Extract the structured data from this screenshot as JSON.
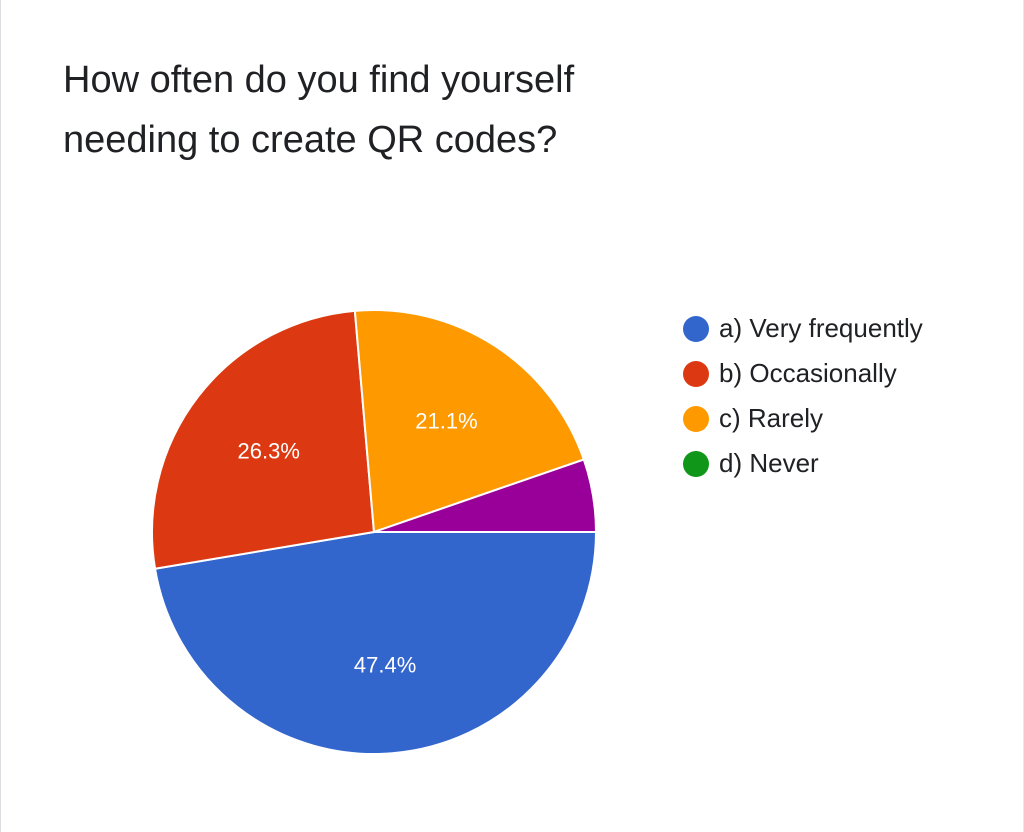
{
  "chart_data": {
    "type": "pie",
    "title": "How often do you find yourself\nneeding to create QR codes?",
    "categories": [
      "a) Very frequently",
      "b) Occasionally",
      "c) Rarely",
      "d) Never"
    ],
    "values": [
      47.4,
      26.3,
      21.1,
      5.3
    ],
    "data_labels": [
      "47.4%",
      "26.3%",
      "21.1%",
      ""
    ],
    "colors": [
      "#3366cc",
      "#dc3912",
      "#ff9900",
      "#990099"
    ],
    "legend_colors": [
      "#3366cc",
      "#dc3912",
      "#ff9900",
      "#109618"
    ],
    "legend_position": "right"
  }
}
